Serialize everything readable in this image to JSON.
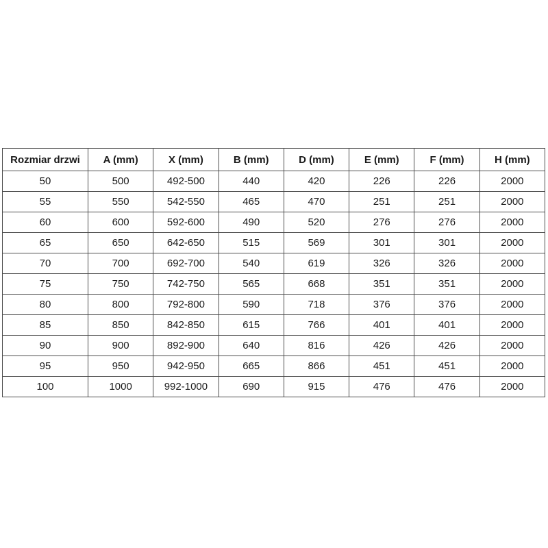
{
  "table": {
    "headers": [
      "Rozmiar drzwi",
      "A (mm)",
      "X (mm)",
      "B (mm)",
      "D (mm)",
      "E (mm)",
      "F (mm)",
      "H (mm)"
    ],
    "rows": [
      [
        "50",
        "500",
        "492-500",
        "440",
        "420",
        "226",
        "226",
        "2000"
      ],
      [
        "55",
        "550",
        "542-550",
        "465",
        "470",
        "251",
        "251",
        "2000"
      ],
      [
        "60",
        "600",
        "592-600",
        "490",
        "520",
        "276",
        "276",
        "2000"
      ],
      [
        "65",
        "650",
        "642-650",
        "515",
        "569",
        "301",
        "301",
        "2000"
      ],
      [
        "70",
        "700",
        "692-700",
        "540",
        "619",
        "326",
        "326",
        "2000"
      ],
      [
        "75",
        "750",
        "742-750",
        "565",
        "668",
        "351",
        "351",
        "2000"
      ],
      [
        "80",
        "800",
        "792-800",
        "590",
        "718",
        "376",
        "376",
        "2000"
      ],
      [
        "85",
        "850",
        "842-850",
        "615",
        "766",
        "401",
        "401",
        "2000"
      ],
      [
        "90",
        "900",
        "892-900",
        "640",
        "816",
        "426",
        "426",
        "2000"
      ],
      [
        "95",
        "950",
        "942-950",
        "665",
        "866",
        "451",
        "451",
        "2000"
      ],
      [
        "100",
        "1000",
        "992-1000",
        "690",
        "915",
        "476",
        "476",
        "2000"
      ]
    ]
  },
  "chart_data": {
    "type": "table",
    "title": "",
    "columns": [
      "Rozmiar drzwi",
      "A (mm)",
      "X (mm)",
      "B (mm)",
      "D (mm)",
      "E (mm)",
      "F (mm)",
      "H (mm)"
    ],
    "rows": [
      [
        "50",
        "500",
        "492-500",
        "440",
        "420",
        "226",
        "226",
        "2000"
      ],
      [
        "55",
        "550",
        "542-550",
        "465",
        "470",
        "251",
        "251",
        "2000"
      ],
      [
        "60",
        "600",
        "592-600",
        "490",
        "520",
        "276",
        "276",
        "2000"
      ],
      [
        "65",
        "650",
        "642-650",
        "515",
        "569",
        "301",
        "301",
        "2000"
      ],
      [
        "70",
        "700",
        "692-700",
        "540",
        "619",
        "326",
        "326",
        "2000"
      ],
      [
        "75",
        "750",
        "742-750",
        "565",
        "668",
        "351",
        "351",
        "2000"
      ],
      [
        "80",
        "800",
        "792-800",
        "590",
        "718",
        "376",
        "376",
        "2000"
      ],
      [
        "85",
        "850",
        "842-850",
        "615",
        "766",
        "401",
        "401",
        "2000"
      ],
      [
        "90",
        "900",
        "892-900",
        "640",
        "816",
        "426",
        "426",
        "2000"
      ],
      [
        "95",
        "950",
        "942-950",
        "665",
        "866",
        "451",
        "451",
        "2000"
      ],
      [
        "100",
        "1000",
        "992-1000",
        "690",
        "915",
        "476",
        "476",
        "2000"
      ]
    ],
    "layout": {
      "grid": true,
      "header_bold": true,
      "cell_alignment": "center",
      "border_color": "#4a4a4a",
      "background_color": "#ffffff",
      "text_color": "#1a1a1a"
    }
  }
}
